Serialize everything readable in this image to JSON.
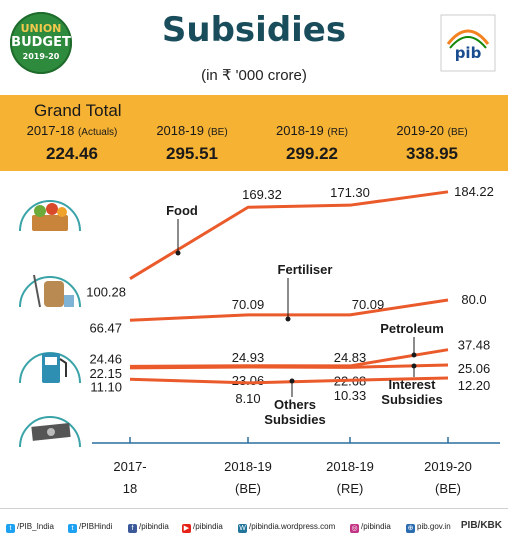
{
  "header": {
    "badge_line1": "UNION",
    "badge_line2": "BUDGET",
    "badge_line3": "2019-20",
    "title": "Subsidies",
    "subtitle": "(in ₹ '000 crore)",
    "logo_text": "pib"
  },
  "grand_total": {
    "label": "Grand Total",
    "columns": [
      {
        "year": "2017-18",
        "note": "(Actuals)",
        "value": "224.46"
      },
      {
        "year": "2018-19",
        "note": "(BE)",
        "value": "295.51"
      },
      {
        "year": "2018-19",
        "note": "(RE)",
        "value": "299.22"
      },
      {
        "year": "2019-20",
        "note": "(BE)",
        "value": "338.95"
      }
    ]
  },
  "chart_data": {
    "type": "line",
    "categories": [
      "2017-18",
      "2018-19 (BE)",
      "2018-19 (RE)",
      "2019-20 (BE)"
    ],
    "category_lines": [
      [
        "2017-",
        "18"
      ],
      [
        "2018-19",
        "(BE)"
      ],
      [
        "2018-19",
        "(RE)"
      ],
      [
        "2019-20",
        "(BE)"
      ]
    ],
    "series": [
      {
        "name": "Food",
        "values": [
          100.28,
          169.32,
          171.3,
          184.22
        ],
        "labels": [
          "100.28",
          "169.32",
          "171.30",
          "184.22"
        ],
        "color": "#ea5a2b"
      },
      {
        "name": "Fertiliser",
        "values": [
          66.47,
          70.09,
          70.09,
          80.0
        ],
        "labels": [
          "66.47",
          "70.09",
          "70.09",
          "80.0"
        ],
        "color": "#ea5a2b"
      },
      {
        "name": "Petroleum",
        "values": [
          24.46,
          24.93,
          24.83,
          37.48
        ],
        "labels": [
          "24.46",
          "24.93",
          "24.83",
          "37.48"
        ],
        "color": "#ea5a2b"
      },
      {
        "name": "Interest Subsidies",
        "values": [
          22.15,
          23.06,
          22.68,
          25.06
        ],
        "labels": [
          "22.15",
          "23.06",
          "22.68",
          "25.06"
        ],
        "color": "#ea5a2b"
      },
      {
        "name": "Others Subsidies",
        "values": [
          11.1,
          8.1,
          10.33,
          12.2
        ],
        "labels": [
          "11.10",
          "8.10",
          "10.33",
          "12.20"
        ],
        "color": "#ea5a2b"
      }
    ],
    "icons": [
      "food-basket-icon",
      "fertiliser-sack-icon",
      "fuel-pump-icon",
      "money-icon"
    ]
  },
  "footer": {
    "items": [
      {
        "icon": "twitter-icon",
        "text": "/PIB_India",
        "color": "#1da1f2"
      },
      {
        "icon": "twitter-icon",
        "text": "/PIBHindi",
        "color": "#1da1f2"
      },
      {
        "icon": "facebook-icon",
        "text": "/pibindia",
        "color": "#3b5998"
      },
      {
        "icon": "youtube-icon",
        "text": "/pibindia",
        "color": "#e62117"
      },
      {
        "icon": "wordpress-icon",
        "text": "/pibindia.wordpress.com",
        "color": "#21759b"
      },
      {
        "icon": "instagram-icon",
        "text": "/pibindia",
        "color": "#c13584"
      },
      {
        "icon": "web-icon",
        "text": "pib.gov.in",
        "color": "#2b6cb0"
      }
    ],
    "brand": "PIB/KBK"
  }
}
